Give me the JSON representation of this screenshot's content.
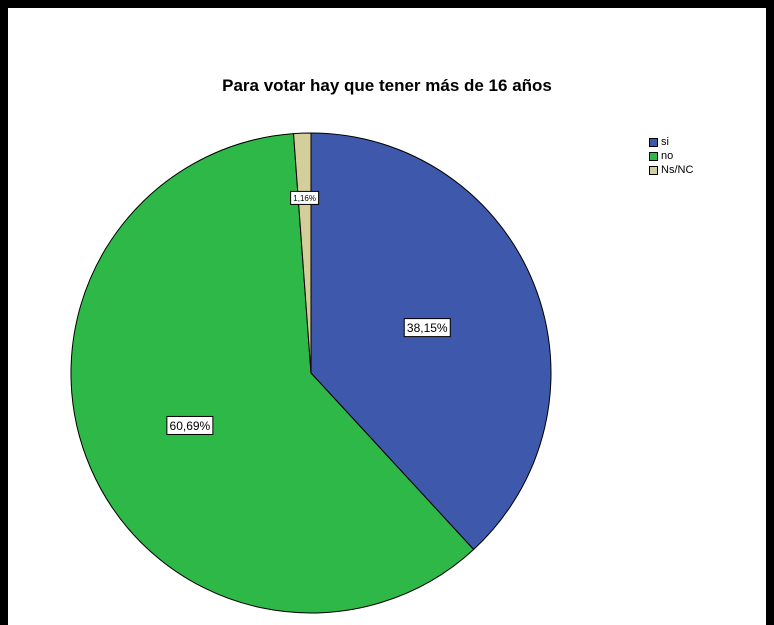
{
  "chart_data": {
    "type": "pie",
    "title": "Para  votar hay que tener más de 16 años",
    "legend_position": "top-right",
    "series": [
      {
        "name": "si",
        "value": 38.15,
        "label": "38,15%",
        "color": "#3E58AC"
      },
      {
        "name": "no",
        "value": 60.69,
        "label": "60,69%",
        "color": "#2EB848"
      },
      {
        "name": "Ns/NC",
        "value": 1.16,
        "label": "1,16%",
        "color": "#D4CE9A"
      }
    ]
  }
}
